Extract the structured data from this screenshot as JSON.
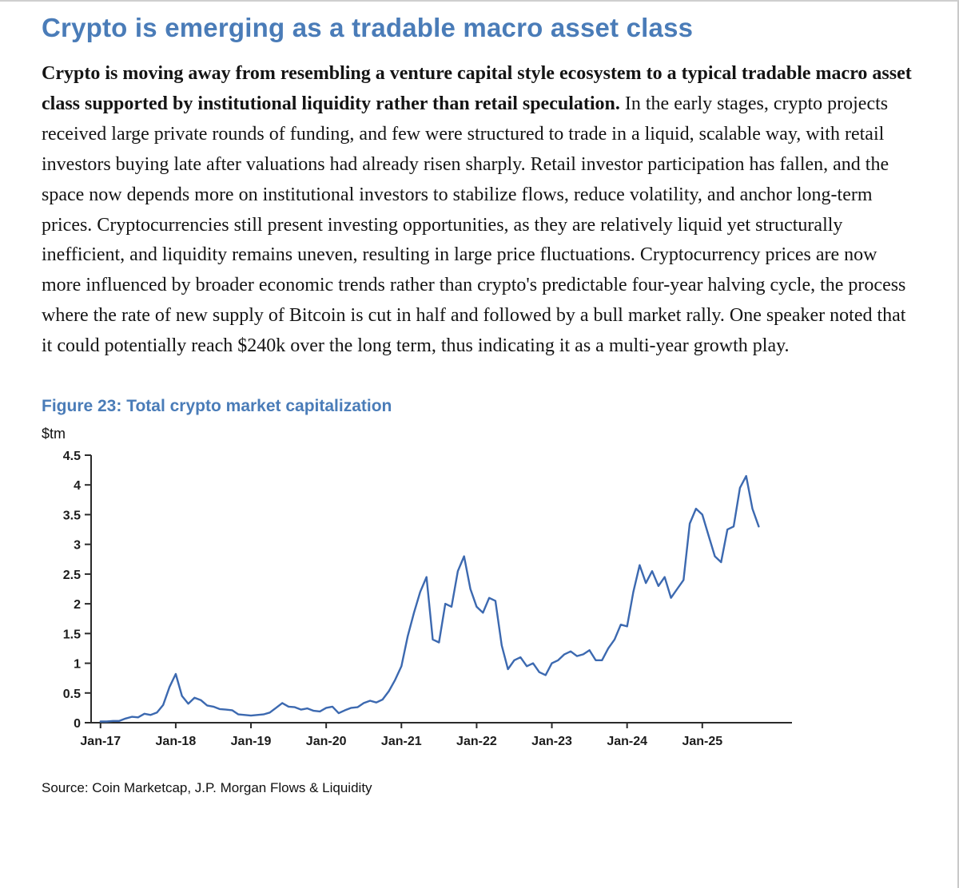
{
  "page": {
    "title": "Crypto is emerging as a tradable macro asset class",
    "body_bold": "Crypto is moving away from resembling a venture capital style ecosystem to a typical tradable macro asset class supported by institutional liquidity rather than retail speculation.",
    "body_rest": " In the early stages, crypto projects received large private rounds of funding, and few were structured to trade in a liquid, scalable way, with retail investors buying late after valuations had already risen sharply. Retail investor participation has fallen, and the space now depends more on institutional investors to stabilize flows, reduce volatility, and anchor long-term prices. Cryptocurrencies still present investing opportunities, as they are relatively liquid yet structurally inefficient, and liquidity remains uneven, resulting in large price fluctuations. Cryptocurrency prices are now more influenced by broader economic trends rather than crypto's predictable four-year halving cycle, the process where the rate of new supply of Bitcoin is cut in half and followed by a bull market rally. One speaker noted that it could potentially reach $240k over the long term, thus indicating it as a multi-year growth play.",
    "figure_caption": "Figure 23: Total crypto market capitalization",
    "unit_label": "$tm",
    "source": "Source: Coin Marketcap, J.P. Morgan Flows & Liquidity"
  },
  "chart_data": {
    "type": "line",
    "title": "Figure 23: Total crypto market capitalization",
    "ylabel": "$tm",
    "ylim": [
      0,
      4.5
    ],
    "yticks": [
      0,
      0.5,
      1,
      1.5,
      2,
      2.5,
      3,
      3.5,
      4,
      4.5
    ],
    "xlim": [
      -1.5,
      107.5
    ],
    "xticks": [
      0,
      12,
      24,
      36,
      48,
      60,
      72,
      84,
      96
    ],
    "xtick_labels": [
      "Jan-17",
      "Jan-18",
      "Jan-19",
      "Jan-20",
      "Jan-21",
      "Jan-22",
      "Jan-23",
      "Jan-24",
      "Jan-25"
    ],
    "x_unit": "months since Jan-2017",
    "line_color": "#3c69b0",
    "grid": false,
    "legend": "none",
    "series": [
      {
        "name": "Total crypto market capitalization ($tm)",
        "values": [
          0.02,
          0.02,
          0.03,
          0.03,
          0.07,
          0.1,
          0.09,
          0.15,
          0.13,
          0.17,
          0.3,
          0.6,
          0.82,
          0.45,
          0.32,
          0.42,
          0.38,
          0.29,
          0.27,
          0.23,
          0.22,
          0.21,
          0.14,
          0.13,
          0.12,
          0.13,
          0.14,
          0.17,
          0.25,
          0.33,
          0.27,
          0.26,
          0.22,
          0.24,
          0.2,
          0.19,
          0.25,
          0.27,
          0.16,
          0.21,
          0.25,
          0.26,
          0.33,
          0.37,
          0.34,
          0.39,
          0.53,
          0.72,
          0.95,
          1.45,
          1.85,
          2.2,
          2.45,
          1.4,
          1.35,
          2.0,
          1.95,
          2.55,
          2.8,
          2.25,
          1.95,
          1.85,
          2.1,
          2.05,
          1.3,
          0.9,
          1.05,
          1.1,
          0.95,
          1.0,
          0.85,
          0.8,
          1.0,
          1.05,
          1.15,
          1.2,
          1.12,
          1.15,
          1.22,
          1.05,
          1.05,
          1.25,
          1.4,
          1.65,
          1.62,
          2.2,
          2.65,
          2.35,
          2.55,
          2.3,
          2.45,
          2.1,
          2.25,
          2.4,
          3.35,
          3.6,
          3.5,
          3.15,
          2.8,
          2.7,
          3.25,
          3.3,
          3.95,
          4.15,
          3.6,
          3.3
        ]
      }
    ]
  }
}
